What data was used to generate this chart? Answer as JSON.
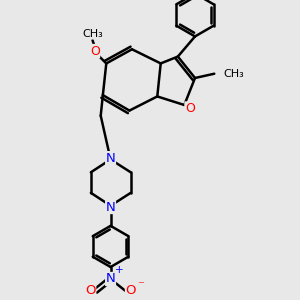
{
  "bg_color": "#e8e8e8",
  "bond_color": "#000000",
  "bond_width": 1.8,
  "atom_colors": {
    "O": "#ff0000",
    "N": "#0000ff",
    "C": "#000000"
  },
  "font_size": 8.5,
  "fig_size": [
    3.0,
    3.0
  ],
  "dpi": 100,
  "xlim": [
    -2.2,
    2.8
  ],
  "ylim": [
    -3.8,
    3.2
  ]
}
